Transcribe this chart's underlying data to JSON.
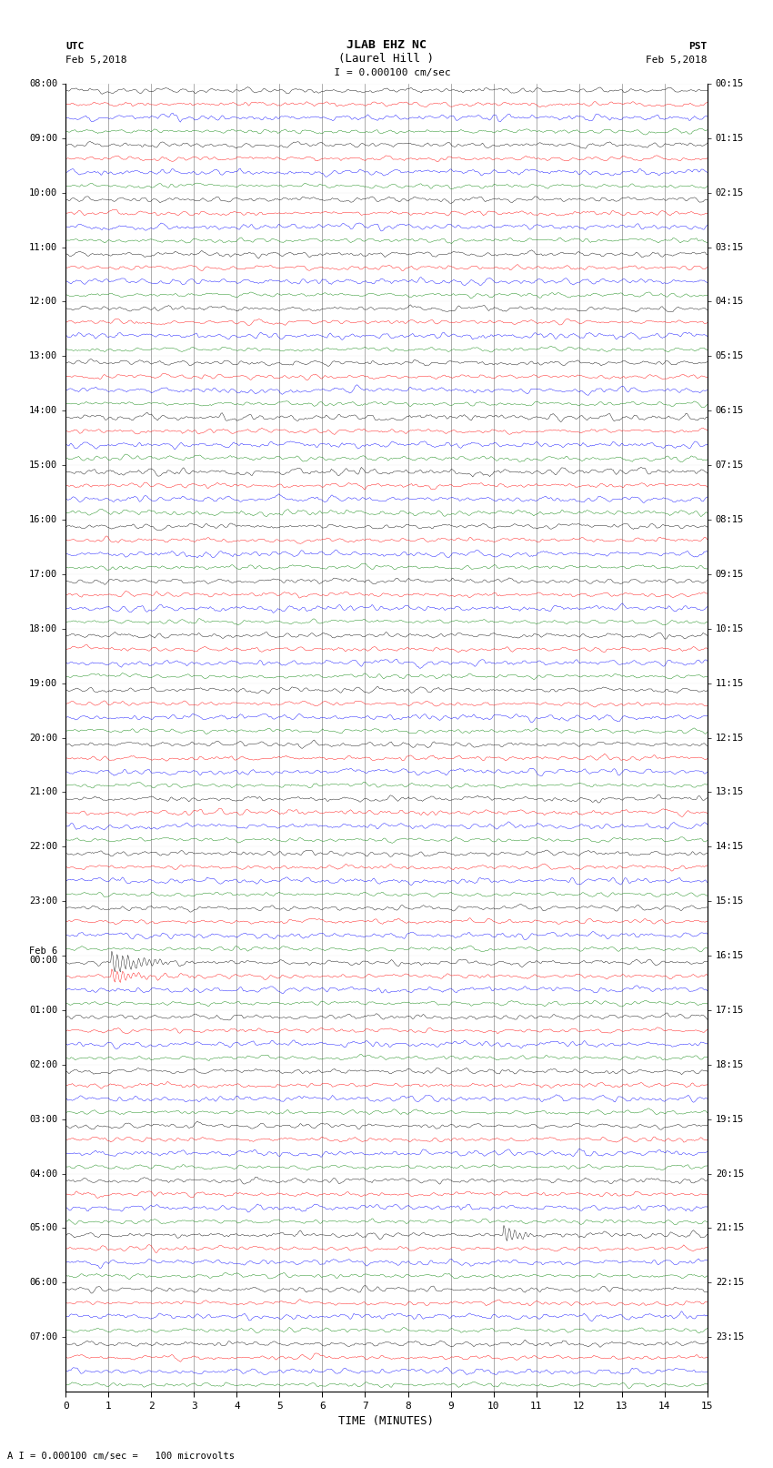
{
  "title_line1": "JLAB EHZ NC",
  "title_line2": "(Laurel Hill )",
  "scale_text": "  I = 0.000100 cm/sec",
  "bottom_note": "A I = 0.000100 cm/sec =   100 microvolts",
  "utc_label": "UTC",
  "utc_date": "Feb 5,2018",
  "pst_label": "PST",
  "pst_date": "Feb 5,2018",
  "xlabel": "TIME (MINUTES)",
  "left_hour_labels": [
    "08:00",
    "09:00",
    "10:00",
    "11:00",
    "12:00",
    "13:00",
    "14:00",
    "15:00",
    "16:00",
    "17:00",
    "18:00",
    "19:00",
    "20:00",
    "21:00",
    "22:00",
    "23:00",
    "Feb 6\n00:00",
    "01:00",
    "02:00",
    "03:00",
    "04:00",
    "05:00",
    "06:00",
    "07:00"
  ],
  "right_hour_labels": [
    "00:15",
    "01:15",
    "02:15",
    "03:15",
    "04:15",
    "05:15",
    "06:15",
    "07:15",
    "08:15",
    "09:15",
    "10:15",
    "11:15",
    "12:15",
    "13:15",
    "14:15",
    "15:15",
    "16:15",
    "17:15",
    "18:15",
    "19:15",
    "20:15",
    "21:15",
    "22:15",
    "23:15"
  ],
  "trace_colors": [
    "black",
    "red",
    "blue",
    "green"
  ],
  "num_hours": 24,
  "traces_per_hour": 4,
  "minutes_per_row": 15,
  "samples_per_minute": 40,
  "background_color": "white",
  "grid_color": "#808080",
  "noise_amplitude": 0.09,
  "fig_width": 8.5,
  "fig_height": 16.13,
  "dpi": 100
}
